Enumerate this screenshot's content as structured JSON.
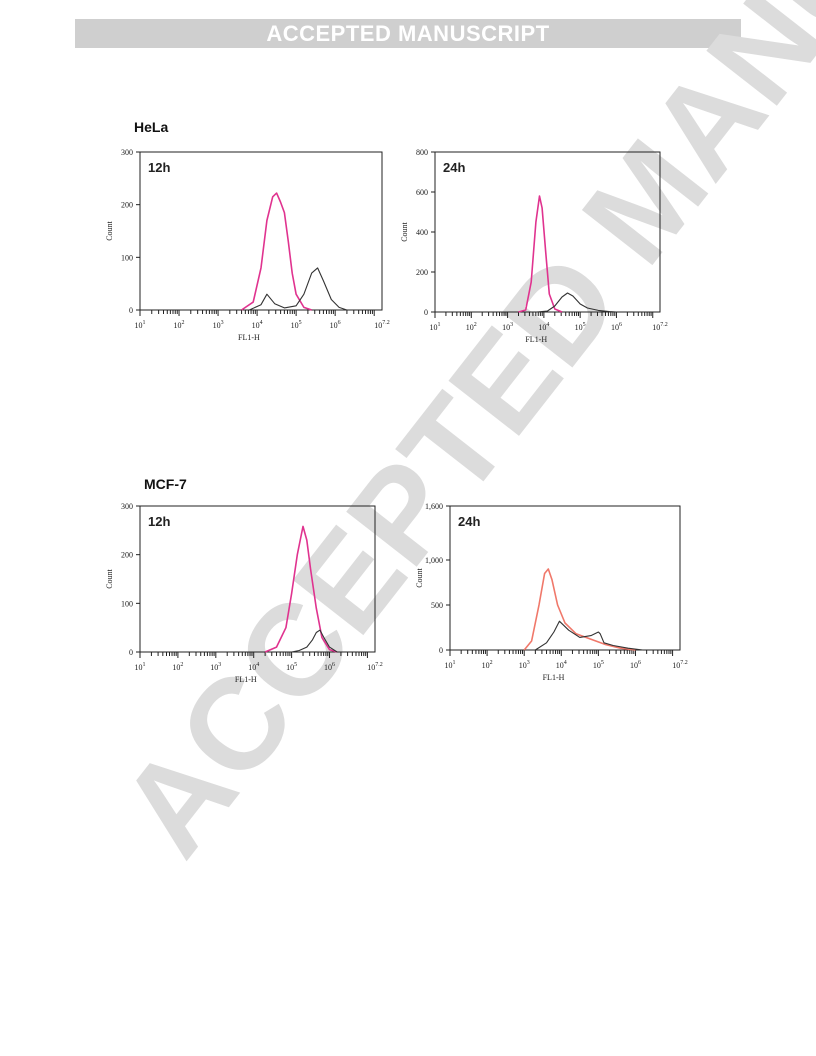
{
  "banner": "ACCEPTED MANUSCRIPT",
  "watermark": {
    "text": "ACCEPTED MANUSCRIPT",
    "color": "#dcdcdc"
  },
  "cell_lines": [
    {
      "label": "HeLa"
    },
    {
      "label": "MCF-7"
    }
  ],
  "colors": {
    "treated": "#e0338f",
    "treated_alt": "#f0786a",
    "control": "#333333"
  },
  "chart_data": [
    {
      "type": "line",
      "title": "12h",
      "xlabel": "FL1-H",
      "ylabel": "Count",
      "xscale": "log",
      "xlim": [
        1,
        7.2
      ],
      "ylim": [
        0,
        300
      ],
      "yticks": [
        0,
        100,
        200,
        300
      ],
      "ytick_labels": [
        "0",
        "100",
        "200",
        "300"
      ],
      "xtick_labels": [
        "10^1",
        "10^2",
        "10^3",
        "10^4",
        "10^5",
        "10^6",
        "10^7.2"
      ],
      "series": [
        {
          "color": "#e0338f",
          "x": [
            3.6,
            3.9,
            4.1,
            4.25,
            4.4,
            4.5,
            4.6,
            4.7,
            4.8,
            4.9,
            5.0,
            5.2,
            5.4
          ],
          "y": [
            0,
            15,
            80,
            170,
            215,
            222,
            205,
            185,
            130,
            70,
            30,
            5,
            0
          ]
        },
        {
          "color": "#333333",
          "x": [
            3.8,
            4.1,
            4.25,
            4.45,
            4.7,
            5.0,
            5.2,
            5.4,
            5.55,
            5.7,
            5.9,
            6.1,
            6.3
          ],
          "y": [
            0,
            10,
            30,
            12,
            4,
            8,
            30,
            70,
            80,
            55,
            20,
            5,
            0
          ]
        }
      ]
    },
    {
      "type": "line",
      "title": "24h",
      "xlabel": "FL1-H",
      "ylabel": "Count",
      "xscale": "log",
      "xlim": [
        1,
        7.2
      ],
      "ylim": [
        0,
        800
      ],
      "yticks": [
        0,
        200,
        400,
        600,
        800
      ],
      "ytick_labels": [
        "0",
        "200",
        "400",
        "600",
        "800"
      ],
      "xtick_labels": [
        "10^1",
        "10^2",
        "10^3",
        "10^4",
        "10^5",
        "10^6",
        "10^7.2"
      ],
      "series": [
        {
          "color": "#e0338f",
          "x": [
            3.3,
            3.5,
            3.65,
            3.78,
            3.88,
            3.95,
            4.05,
            4.15,
            4.3,
            4.5
          ],
          "y": [
            0,
            10,
            150,
            450,
            580,
            520,
            300,
            90,
            15,
            0
          ]
        },
        {
          "color": "#333333",
          "x": [
            3.8,
            4.1,
            4.3,
            4.5,
            4.65,
            4.8,
            5.0,
            5.2,
            5.5,
            5.8,
            6.0
          ],
          "y": [
            0,
            5,
            30,
            75,
            95,
            80,
            40,
            20,
            8,
            2,
            0
          ]
        }
      ]
    },
    {
      "type": "line",
      "title": "12h",
      "xlabel": "FL1-H",
      "ylabel": "Count",
      "xscale": "log",
      "xlim": [
        1,
        7.2
      ],
      "ylim": [
        0,
        300
      ],
      "yticks": [
        0,
        100,
        200,
        300
      ],
      "ytick_labels": [
        "0",
        "100",
        "200",
        "300"
      ],
      "xtick_labels": [
        "10^1",
        "10^2",
        "10^3",
        "10^4",
        "10^5",
        "10^6",
        "10^7.2"
      ],
      "series": [
        {
          "color": "#e0338f",
          "x": [
            4.3,
            4.6,
            4.85,
            5.0,
            5.15,
            5.3,
            5.4,
            5.5,
            5.65,
            5.8,
            6.0,
            6.2
          ],
          "y": [
            0,
            10,
            50,
            120,
            200,
            258,
            230,
            170,
            90,
            30,
            5,
            0
          ]
        },
        {
          "color": "#333333",
          "x": [
            5.0,
            5.2,
            5.4,
            5.55,
            5.65,
            5.75,
            5.85,
            6.0,
            6.2
          ],
          "y": [
            0,
            3,
            10,
            25,
            40,
            45,
            30,
            10,
            0
          ]
        }
      ]
    },
    {
      "type": "line",
      "title": "24h",
      "xlabel": "FL1-H",
      "ylabel": "Count",
      "xscale": "log",
      "xlim": [
        1,
        7.2
      ],
      "ylim": [
        0,
        1600
      ],
      "yticks": [
        0,
        500,
        1000,
        1600
      ],
      "ytick_labels": [
        "0",
        "500",
        "1,000",
        "1,600"
      ],
      "xtick_labels": [
        "10^1",
        "10^2",
        "10^3",
        "10^4",
        "10^5",
        "10^6",
        "10^7.2"
      ],
      "series": [
        {
          "color": "#f0786a",
          "x": [
            3.0,
            3.2,
            3.4,
            3.55,
            3.65,
            3.75,
            3.9,
            4.1,
            4.4,
            4.8,
            5.2,
            5.6,
            6.0
          ],
          "y": [
            0,
            100,
            500,
            850,
            900,
            780,
            500,
            300,
            180,
            120,
            60,
            20,
            0
          ]
        },
        {
          "color": "#333333",
          "x": [
            3.3,
            3.6,
            3.8,
            3.95,
            4.2,
            4.5,
            4.8,
            5.0,
            5.05,
            5.15,
            5.4,
            5.8,
            6.2
          ],
          "y": [
            0,
            80,
            200,
            320,
            220,
            140,
            160,
            200,
            180,
            80,
            50,
            20,
            0
          ]
        }
      ]
    }
  ]
}
